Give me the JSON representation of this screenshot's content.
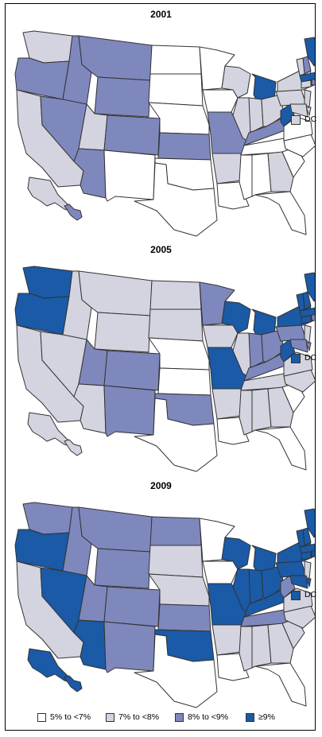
{
  "colors": {
    "c0": "#ffffff",
    "c1": "#d4d4e0",
    "c2": "#7f88bd",
    "c3": "#1a5aa6"
  },
  "panels": [
    {
      "year": "2001",
      "dc_label": "DC",
      "dc": "c1",
      "states": {
        "WA": "c1",
        "OR": "c2",
        "CA": "c1",
        "ID": "c2",
        "NV": "c2",
        "MT": "c2",
        "WY": "c2",
        "UT": "c1",
        "AZ": "c2",
        "CO": "c2",
        "NM": "c0",
        "ND": "c0",
        "SD": "c0",
        "NE": "c0",
        "KS": "c2",
        "OK": "c0",
        "TX": "c0",
        "MN": "c0",
        "IA": "c0",
        "MO": "c2",
        "AR": "c1",
        "LA": "c0",
        "WI": "c1",
        "IL": "c1",
        "MI": "c3",
        "IN": "c1",
        "OH": "c1",
        "KY": "c2",
        "TN": "c0",
        "MS": "c0",
        "AL": "c0",
        "GA": "c1",
        "FL": "c0",
        "SC": "c0",
        "NC": "c0",
        "VA": "c0",
        "WV": "c3",
        "PA": "c1",
        "NY": "c1",
        "ME": "c3",
        "NH": "c2",
        "VT": "c1",
        "MA": "c3",
        "CT": "c1",
        "RI": "c2",
        "NJ": "c1",
        "DE": "c1",
        "MD": "c1",
        "AK": "c1",
        "HI": "c2"
      }
    },
    {
      "year": "2005",
      "dc_label": "DC",
      "dc": "c3",
      "states": {
        "WA": "c3",
        "OR": "c3",
        "CA": "c1",
        "ID": "c1",
        "NV": "c1",
        "MT": "c1",
        "WY": "c1",
        "UT": "c2",
        "AZ": "c1",
        "CO": "c2",
        "NM": "c2",
        "ND": "c1",
        "SD": "c1",
        "NE": "c0",
        "KS": "c0",
        "OK": "c2",
        "TX": "c0",
        "MN": "c2",
        "IA": "c1",
        "MO": "c3",
        "AR": "c1",
        "LA": "c0",
        "WI": "c3",
        "IL": "c1",
        "MI": "c3",
        "IN": "c2",
        "OH": "c2",
        "KY": "c2",
        "TN": "c1",
        "MS": "c1",
        "AL": "c1",
        "GA": "c1",
        "FL": "c0",
        "SC": "c0",
        "NC": "c1",
        "VA": "c1",
        "WV": "c3",
        "PA": "c2",
        "NY": "c3",
        "ME": "c3",
        "NH": "c3",
        "VT": "c3",
        "MA": "c3",
        "CT": "c3",
        "RI": "c2",
        "NJ": "c1",
        "DE": "c2",
        "MD": "c2",
        "AK": "c1",
        "HI": "c1"
      }
    },
    {
      "year": "2009",
      "dc_label": "DC",
      "dc": "c3",
      "states": {
        "WA": "c2",
        "OR": "c3",
        "CA": "c1",
        "ID": "c2",
        "NV": "c3",
        "MT": "c2",
        "WY": "c2",
        "UT": "c2",
        "AZ": "c3",
        "CO": "c2",
        "NM": "c2",
        "ND": "c2",
        "SD": "c1",
        "NE": "c1",
        "KS": "c2",
        "OK": "c3",
        "TX": "c0",
        "MN": "c0",
        "IA": "c0",
        "MO": "c3",
        "AR": "c1",
        "LA": "c0",
        "WI": "c3",
        "IL": "c3",
        "MI": "c3",
        "IN": "c3",
        "OH": "c3",
        "KY": "c3",
        "TN": "c2",
        "MS": "c1",
        "AL": "c1",
        "GA": "c1",
        "FL": "c0",
        "SC": "c1",
        "NC": "c1",
        "VA": "c1",
        "WV": "c2",
        "PA": "c3",
        "NY": "c3",
        "ME": "c3",
        "NH": "c3",
        "VT": "c3",
        "MA": "c3",
        "CT": "c3",
        "RI": "c3",
        "NJ": "c1",
        "DE": "c3",
        "MD": "c3",
        "AK": "c3",
        "HI": "c3"
      }
    }
  ],
  "legend": [
    {
      "label": "5% to <7%",
      "color": "c0"
    },
    {
      "label": "7% to <8%",
      "color": "c1"
    },
    {
      "label": "8% to <9%",
      "color": "c2"
    },
    {
      "label": "≥9%",
      "color": "c3"
    }
  ]
}
